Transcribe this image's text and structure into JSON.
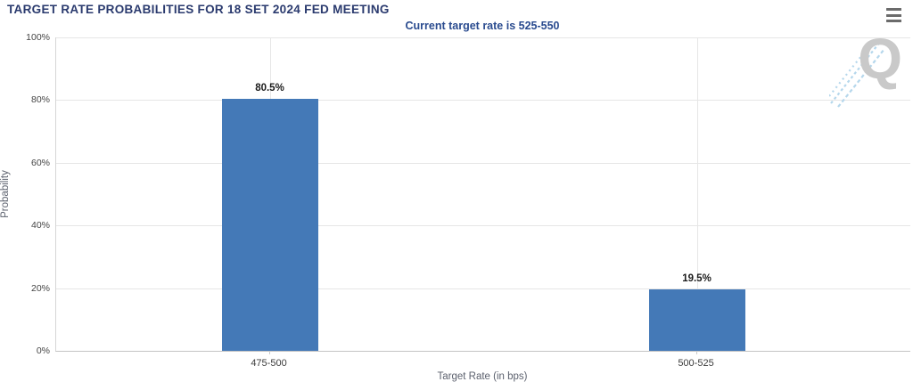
{
  "header": {
    "title": "TARGET RATE PROBABILITIES FOR 18 SET 2024 FED MEETING",
    "subtitle": "Current target rate is 525-550",
    "menu_icon": "hamburger-menu-icon"
  },
  "watermark": {
    "letter": "Q"
  },
  "chart_data": {
    "type": "bar",
    "title": "TARGET RATE PROBABILITIES FOR 18 SET 2024 FED MEETING",
    "subtitle": "Current target rate is 525-550",
    "categories": [
      "475-500",
      "500-525"
    ],
    "values": [
      80.5,
      19.5
    ],
    "value_labels": [
      "80.5%",
      "19.5%"
    ],
    "xlabel": "Target Rate (in bps)",
    "ylabel": "Probability",
    "ylim": [
      0,
      100
    ],
    "ytick_step": 20,
    "ytick_labels": [
      "0%",
      "20%",
      "40%",
      "60%",
      "80%",
      "100%"
    ],
    "grid": true,
    "legend": "none",
    "bar_color": "#4479b7"
  },
  "colors": {
    "title": "#2a3a6e",
    "subtitle": "#2a4b8f",
    "bar": "#4479b7",
    "gridline": "#e6e6e6",
    "axis_line": "#c4c4c4",
    "watermark_gray": "#c9c9c9",
    "watermark_blue": "#b5d7ec"
  }
}
